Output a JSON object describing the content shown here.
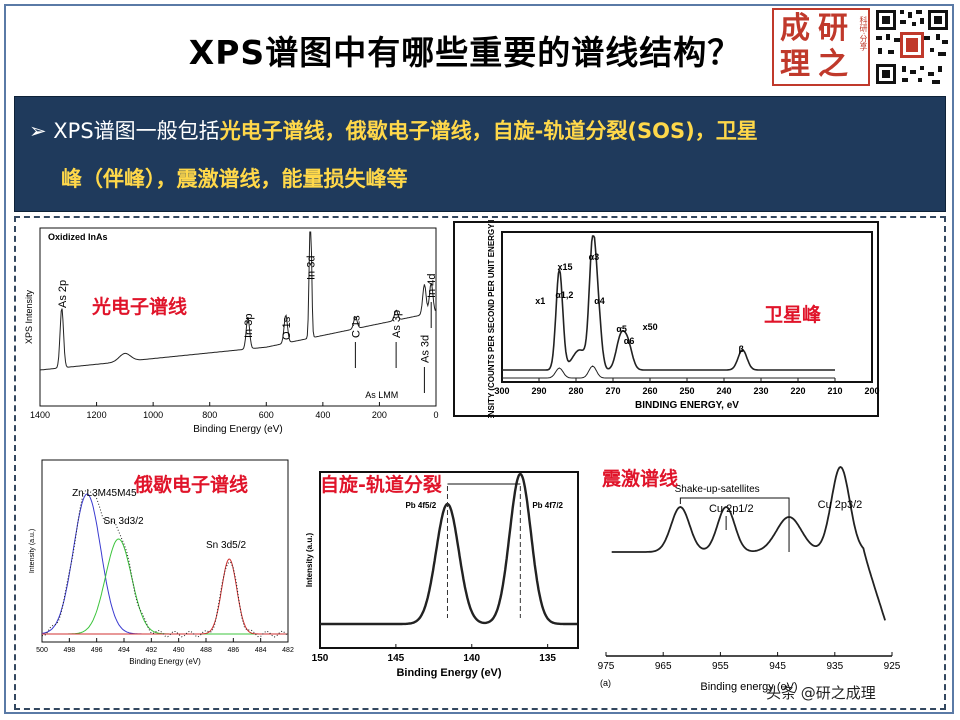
{
  "title": "XPS谱图中有哪些重要的谱线结构？",
  "logo": {
    "chars": [
      "成",
      "研",
      "理",
      "之"
    ],
    "side": "科研·分享"
  },
  "banner": {
    "bullet": "➢",
    "line1_plain": "XPS谱图一般包括",
    "line1_hl": "光电子谱线，俄歇电子谱线，自旋-轨道分裂(SOS)，卫星",
    "line2": "峰（伴峰），震激谱线，能量损失峰等"
  },
  "labels": {
    "photo": "光电子谱线",
    "satellite": "卫星峰",
    "auger": "俄歇电子谱线",
    "sos": "自旋-轨道分裂",
    "shake": "震激谱线"
  },
  "watermark": "头条 @研之成理",
  "chart_data": [
    {
      "type": "line",
      "title": "Oxidized InAs",
      "xlabel": "Binding Energy (eV)",
      "ylabel": "XPS Intensity",
      "xlim": [
        1400,
        0
      ],
      "xticks": [
        1400,
        1200,
        1000,
        800,
        600,
        400,
        200,
        0
      ],
      "peaks": [
        {
          "label": "As 2p",
          "x": 1323
        },
        {
          "label": "In 3p",
          "x": 665
        },
        {
          "label": "O 1s",
          "x": 531
        },
        {
          "label": "In 3d",
          "x": 444
        },
        {
          "label": "C 1s",
          "x": 285
        },
        {
          "label": "As 3p",
          "x": 141
        },
        {
          "label": "As 3d",
          "x": 41
        },
        {
          "label": "In 4d",
          "x": 17
        }
      ],
      "annotation": "As LMM"
    },
    {
      "type": "line",
      "xlabel": "BINDING ENERGY, eV",
      "ylabel": "INTENSITY (COUNTS PER SECOND PER UNIT ENERGY INTERVAL)",
      "xlim": [
        300,
        200
      ],
      "xticks": [
        300,
        290,
        280,
        270,
        260,
        250,
        240,
        230,
        220,
        210,
        200
      ],
      "peaks": [
        {
          "label": "α1,2",
          "x": 284.5
        },
        {
          "label": "α3",
          "x": 275.5
        },
        {
          "label": "α4",
          "x": 274
        },
        {
          "label": "α5",
          "x": 268
        },
        {
          "label": "α6",
          "x": 266
        },
        {
          "label": "β",
          "x": 235
        }
      ],
      "scale_labels": [
        "x1",
        "x15",
        "x50"
      ]
    },
    {
      "type": "line",
      "xlabel": "Binding Energy (eV)",
      "ylabel": "Intensity (a.u.)",
      "xlim": [
        500,
        482
      ],
      "xticks": [
        500,
        498,
        496,
        494,
        492,
        490,
        488,
        486,
        484,
        482
      ],
      "peaks": [
        {
          "label": "Zn L3M45M45",
          "x": 496.7
        },
        {
          "label": "Sn 3d3/2",
          "x": 494.5
        },
        {
          "label": "Sn 3d5/2",
          "x": 486.3
        }
      ]
    },
    {
      "type": "line",
      "xlabel": "Binding Energy (eV)",
      "ylabel": "Intensity (a.u.)",
      "xlim": [
        150,
        133
      ],
      "xticks": [
        150,
        145,
        140,
        135
      ],
      "peaks": [
        {
          "label": "Pb 4f5/2",
          "x": 141.6
        },
        {
          "label": "Pb 4f7/2",
          "x": 136.8
        }
      ]
    },
    {
      "type": "line",
      "xlabel": "Binding energy (eV)",
      "ylabel": "",
      "xlim": [
        975,
        925
      ],
      "xticks": [
        975,
        965,
        955,
        945,
        935,
        925
      ],
      "peaks": [
        {
          "label": "Cu 2p1/2",
          "x": 954
        },
        {
          "label": "Cu 2p3/2",
          "x": 934
        }
      ],
      "annotation": "Shake-up-satellites",
      "panel_tag": "(a)"
    }
  ]
}
